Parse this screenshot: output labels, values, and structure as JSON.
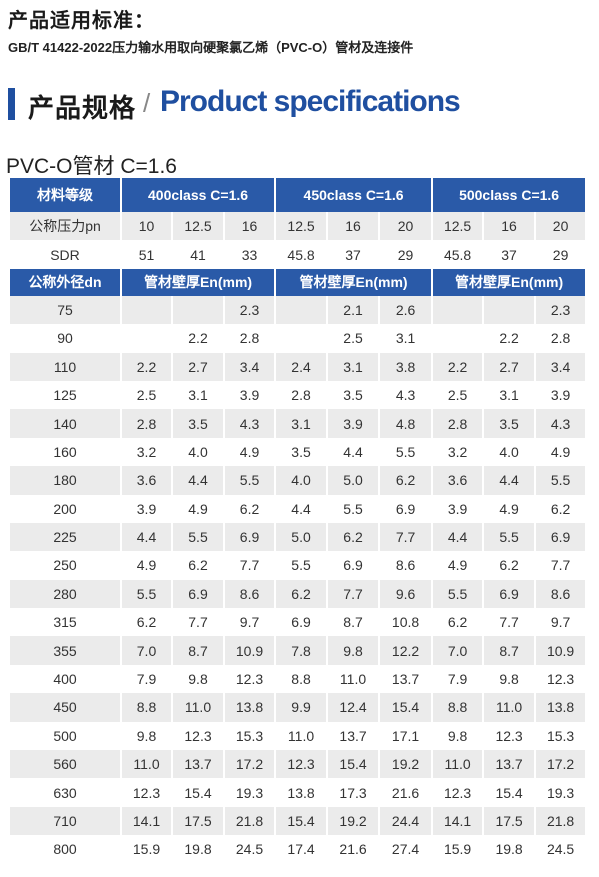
{
  "standard": {
    "title": "产品适用标准：",
    "text": "GB/T 41422-2022压力输水用取向硬聚氯乙烯（PVC-O）管材及连接件"
  },
  "section": {
    "title_cn": "产品规格",
    "slash": "/",
    "title_en": "Product specifications"
  },
  "table": {
    "title": "PVC-O管材 C=1.6",
    "header": {
      "label": "材料等级",
      "groups": [
        "400class  C=1.6",
        "450class  C=1.6",
        "500class  C=1.6"
      ]
    },
    "pressure": {
      "label": "公称压力pn",
      "values": [
        "10",
        "12.5",
        "16",
        "12.5",
        "16",
        "20",
        "12.5",
        "16",
        "20"
      ]
    },
    "sdr": {
      "label": "SDR",
      "values": [
        "51",
        "41",
        "33",
        "45.8",
        "37",
        "29",
        "45.8",
        "37",
        "29"
      ]
    },
    "subheader": {
      "label": "公称外径dn",
      "group_label": "管材壁厚En(mm)"
    },
    "rows": [
      {
        "dn": "75",
        "v": [
          "",
          "",
          "2.3",
          "",
          "2.1",
          "2.6",
          "",
          "",
          "2.3"
        ]
      },
      {
        "dn": "90",
        "v": [
          "",
          "2.2",
          "2.8",
          "",
          "2.5",
          "3.1",
          "",
          "2.2",
          "2.8"
        ]
      },
      {
        "dn": "110",
        "v": [
          "2.2",
          "2.7",
          "3.4",
          "2.4",
          "3.1",
          "3.8",
          "2.2",
          "2.7",
          "3.4"
        ]
      },
      {
        "dn": "125",
        "v": [
          "2.5",
          "3.1",
          "3.9",
          "2.8",
          "3.5",
          "4.3",
          "2.5",
          "3.1",
          "3.9"
        ]
      },
      {
        "dn": "140",
        "v": [
          "2.8",
          "3.5",
          "4.3",
          "3.1",
          "3.9",
          "4.8",
          "2.8",
          "3.5",
          "4.3"
        ]
      },
      {
        "dn": "160",
        "v": [
          "3.2",
          "4.0",
          "4.9",
          "3.5",
          "4.4",
          "5.5",
          "3.2",
          "4.0",
          "4.9"
        ]
      },
      {
        "dn": "180",
        "v": [
          "3.6",
          "4.4",
          "5.5",
          "4.0",
          "5.0",
          "6.2",
          "3.6",
          "4.4",
          "5.5"
        ]
      },
      {
        "dn": "200",
        "v": [
          "3.9",
          "4.9",
          "6.2",
          "4.4",
          "5.5",
          "6.9",
          "3.9",
          "4.9",
          "6.2"
        ]
      },
      {
        "dn": "225",
        "v": [
          "4.4",
          "5.5",
          "6.9",
          "5.0",
          "6.2",
          "7.7",
          "4.4",
          "5.5",
          "6.9"
        ]
      },
      {
        "dn": "250",
        "v": [
          "4.9",
          "6.2",
          "7.7",
          "5.5",
          "6.9",
          "8.6",
          "4.9",
          "6.2",
          "7.7"
        ]
      },
      {
        "dn": "280",
        "v": [
          "5.5",
          "6.9",
          "8.6",
          "6.2",
          "7.7",
          "9.6",
          "5.5",
          "6.9",
          "8.6"
        ]
      },
      {
        "dn": "315",
        "v": [
          "6.2",
          "7.7",
          "9.7",
          "6.9",
          "8.7",
          "10.8",
          "6.2",
          "7.7",
          "9.7"
        ]
      },
      {
        "dn": "355",
        "v": [
          "7.0",
          "8.7",
          "10.9",
          "7.8",
          "9.8",
          "12.2",
          "7.0",
          "8.7",
          "10.9"
        ]
      },
      {
        "dn": "400",
        "v": [
          "7.9",
          "9.8",
          "12.3",
          "8.8",
          "11.0",
          "13.7",
          "7.9",
          "9.8",
          "12.3"
        ]
      },
      {
        "dn": "450",
        "v": [
          "8.8",
          "11.0",
          "13.8",
          "9.9",
          "12.4",
          "15.4",
          "8.8",
          "11.0",
          "13.8"
        ]
      },
      {
        "dn": "500",
        "v": [
          "9.8",
          "12.3",
          "15.3",
          "11.0",
          "13.7",
          "17.1",
          "9.8",
          "12.3",
          "15.3"
        ]
      },
      {
        "dn": "560",
        "v": [
          "11.0",
          "13.7",
          "17.2",
          "12.3",
          "15.4",
          "19.2",
          "11.0",
          "13.7",
          "17.2"
        ]
      },
      {
        "dn": "630",
        "v": [
          "12.3",
          "15.4",
          "19.3",
          "13.8",
          "17.3",
          "21.6",
          "12.3",
          "15.4",
          "19.3"
        ]
      },
      {
        "dn": "710",
        "v": [
          "14.1",
          "17.5",
          "21.8",
          "15.4",
          "19.2",
          "24.4",
          "14.1",
          "17.5",
          "21.8"
        ]
      },
      {
        "dn": "800",
        "v": [
          "15.9",
          "19.8",
          "24.5",
          "17.4",
          "21.6",
          "27.4",
          "15.9",
          "19.8",
          "24.5"
        ]
      }
    ]
  },
  "colors": {
    "accent_blue": "#2a5aa8",
    "heading_blue": "#1f4fa0",
    "row_gray": "#ebebeb"
  }
}
